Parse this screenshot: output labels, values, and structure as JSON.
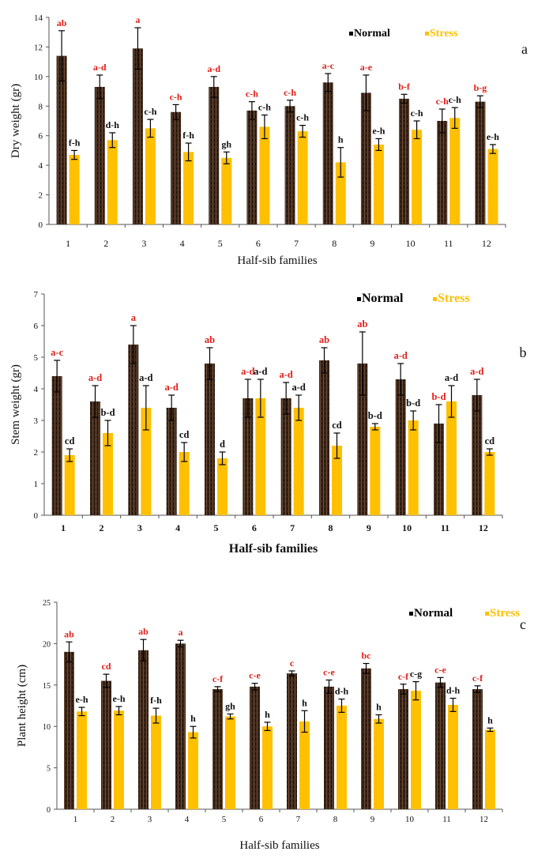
{
  "chart_data": [
    {
      "type": "bar",
      "panel_letter": "a",
      "xlabel": "Half-sib families",
      "ylabel": "Dry weight (gr)",
      "ylim": [
        0,
        14
      ],
      "yticks": [
        0,
        2,
        4,
        6,
        8,
        10,
        12,
        14
      ],
      "categories": [
        "1",
        "2",
        "3",
        "4",
        "5",
        "6",
        "7",
        "8",
        "9",
        "10",
        "11",
        "12"
      ],
      "legend_position": "top-right",
      "series": [
        {
          "name": "Normal",
          "color": "#3a2518",
          "values": [
            11.4,
            9.3,
            11.9,
            7.6,
            9.3,
            7.7,
            8.0,
            9.6,
            8.9,
            8.5,
            7.0,
            8.3
          ],
          "errors": [
            1.7,
            0.8,
            1.4,
            0.5,
            0.7,
            0.6,
            0.4,
            0.6,
            1.2,
            0.3,
            0.8,
            0.4
          ],
          "labels": [
            "ab",
            "a-d",
            "a",
            "c-h",
            "a-d",
            "c-h",
            "c-h",
            "a-c",
            "a-e",
            "b-f",
            "c-h",
            "b-g"
          ]
        },
        {
          "name": "Stress",
          "color": "#ffc000",
          "values": [
            4.7,
            5.7,
            6.5,
            4.9,
            4.5,
            6.6,
            6.3,
            4.2,
            5.4,
            6.4,
            7.2,
            5.1
          ],
          "errors": [
            0.3,
            0.5,
            0.6,
            0.6,
            0.4,
            0.8,
            0.4,
            1.0,
            0.4,
            0.6,
            0.7,
            0.3
          ],
          "labels": [
            "f-h",
            "d-h",
            "c-h",
            "f-h",
            "gh",
            "c-h",
            "c-h",
            "h",
            "e-h",
            "c-h",
            "c-h",
            "e-h"
          ]
        }
      ]
    },
    {
      "type": "bar",
      "panel_letter": "b",
      "xlabel": "Half-sib families",
      "ylabel": "Stem weight (gr)",
      "ylim": [
        0,
        7
      ],
      "yticks": [
        0,
        1,
        2,
        3,
        4,
        5,
        6,
        7
      ],
      "categories": [
        "1",
        "2",
        "3",
        "4",
        "5",
        "6",
        "7",
        "8",
        "9",
        "10",
        "11",
        "12"
      ],
      "legend_position": "top-right",
      "series": [
        {
          "name": "Normal",
          "color": "#3a2518",
          "values": [
            4.4,
            3.6,
            5.4,
            3.4,
            4.8,
            3.7,
            3.7,
            4.9,
            4.8,
            4.3,
            2.9,
            3.8
          ],
          "errors": [
            0.5,
            0.5,
            0.6,
            0.4,
            0.5,
            0.6,
            0.5,
            0.4,
            1.0,
            0.5,
            0.6,
            0.5
          ],
          "labels": [
            "a-c",
            "a-d",
            "a",
            "a-d",
            "ab",
            "a-d",
            "a-d",
            "ab",
            "ab",
            "a-d",
            "b-d",
            "a-d"
          ]
        },
        {
          "name": "Stress",
          "color": "#ffc000",
          "values": [
            1.9,
            2.6,
            3.4,
            2.0,
            1.8,
            3.7,
            3.4,
            2.2,
            2.8,
            3.0,
            3.6,
            2.0
          ],
          "errors": [
            0.2,
            0.4,
            0.7,
            0.3,
            0.2,
            0.6,
            0.4,
            0.4,
            0.1,
            0.3,
            0.5,
            0.1
          ],
          "labels": [
            "cd",
            "b-d",
            "a-d",
            "cd",
            "d",
            "a-d",
            "a-d",
            "cd",
            "b-d",
            "b-d",
            "a-d",
            "cd"
          ]
        }
      ]
    },
    {
      "type": "bar",
      "panel_letter": "c",
      "xlabel": "Half-sib families",
      "ylabel": "Plant height (cm)",
      "ylim": [
        0,
        25
      ],
      "yticks": [
        0,
        5,
        10,
        15,
        20,
        25
      ],
      "categories": [
        "1",
        "2",
        "3",
        "4",
        "5",
        "6",
        "7",
        "8",
        "9",
        "10",
        "11",
        "12"
      ],
      "legend_position": "top-right",
      "series": [
        {
          "name": "Normal",
          "color": "#3a2518",
          "values": [
            19.0,
            15.5,
            19.2,
            20.0,
            14.5,
            14.8,
            16.4,
            14.8,
            17.0,
            14.5,
            15.3,
            14.5
          ],
          "errors": [
            1.2,
            0.8,
            1.3,
            0.4,
            0.3,
            0.4,
            0.3,
            0.8,
            0.6,
            0.6,
            0.6,
            0.4
          ],
          "labels": [
            "ab",
            "cd",
            "ab",
            "a",
            "c-f",
            "c-e",
            "c",
            "c-e",
            "bc",
            "c-f",
            "c-e",
            "c-f"
          ]
        },
        {
          "name": "Stress",
          "color": "#ffc000",
          "values": [
            11.8,
            11.9,
            11.3,
            9.3,
            11.2,
            10.0,
            10.6,
            12.5,
            10.9,
            14.3,
            12.6,
            9.6
          ],
          "errors": [
            0.5,
            0.5,
            0.9,
            0.7,
            0.3,
            0.5,
            1.3,
            0.8,
            0.5,
            1.1,
            0.8,
            0.2
          ],
          "labels": [
            "e-h",
            "e-h",
            "f-h",
            "h",
            "gh",
            "h",
            "h",
            "d-h",
            "h",
            "c-g",
            "d-h",
            "h"
          ]
        }
      ]
    }
  ]
}
